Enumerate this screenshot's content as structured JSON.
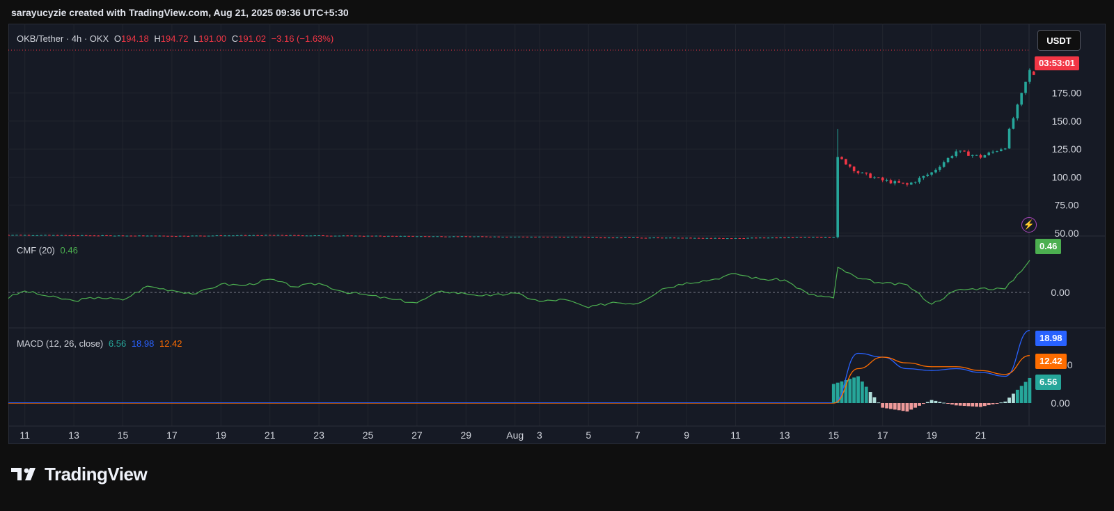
{
  "header": {
    "attribution": "sarayucyzie created with TradingView.com, Aug 21, 2025 09:36 UTC+5:30"
  },
  "symbol_legend": {
    "symbol": "OKB/Tether · 4h · OKX",
    "o_label": "O",
    "o_value": "194.18",
    "h_label": "H",
    "h_value": "194.72",
    "l_label": "L",
    "l_value": "191.00",
    "c_label": "C",
    "c_value": "191.02",
    "change": "−3.16 (−1.63%)"
  },
  "currency_button": "USDT",
  "countdown": "03:53:01",
  "cmf_legend": {
    "name": "CMF (20)",
    "value": "0.46"
  },
  "macd_legend": {
    "name": "MACD (12, 26, close)",
    "hist": "6.56",
    "macd": "18.98",
    "signal": "12.42"
  },
  "price_axis_labels": [
    "175.00",
    "150.00",
    "125.00",
    "100.00",
    "75.00",
    "50.00"
  ],
  "cmf_axis_labels": [
    "0.00"
  ],
  "macd_axis_labels": [
    "10.00",
    "0.00"
  ],
  "badges": {
    "cmf": "0.46",
    "macd": "18.98",
    "signal": "12.42",
    "hist": "6.56"
  },
  "x_axis_labels": [
    "11",
    "13",
    "15",
    "17",
    "19",
    "21",
    "23",
    "25",
    "27",
    "29",
    "Aug",
    "3",
    "5",
    "7",
    "9",
    "11",
    "13",
    "15",
    "17",
    "19",
    "21"
  ],
  "footer": {
    "brand": "TradingView"
  },
  "colors": {
    "up": "#26a69a",
    "down": "#f23645",
    "cmf": "#4caf50",
    "macd": "#2962ff",
    "signal": "#ff6d00",
    "background": "#161a25",
    "grid": "#22262f"
  },
  "chart_data": [
    {
      "type": "candlestick",
      "title": "OKB/Tether · 4h · OKX",
      "x_range": [
        "Jul 11",
        "Aug 21"
      ],
      "ylim": [
        35,
        200
      ],
      "price_anchors": [
        {
          "date": "Jul 10",
          "close": 48.5
        },
        {
          "date": "Jul 13",
          "close": 48.0
        },
        {
          "date": "Jul 17",
          "close": 47.5
        },
        {
          "date": "Jul 21",
          "close": 48.2
        },
        {
          "date": "Jul 25",
          "close": 47.5
        },
        {
          "date": "Jul 29",
          "close": 47.0
        },
        {
          "date": "Aug 2",
          "close": 46.5
        },
        {
          "date": "Aug 5",
          "close": 46.0
        },
        {
          "date": "Aug 8",
          "close": 45.5
        },
        {
          "date": "Aug 11",
          "close": 46.0
        },
        {
          "date": "Aug 13",
          "close": 46.5
        },
        {
          "date": "Aug 13",
          "close": 118
        },
        {
          "date": "Aug 14",
          "close": 104
        },
        {
          "date": "Aug 15",
          "close": 97
        },
        {
          "date": "Aug 16",
          "close": 93
        },
        {
          "date": "Aug 17",
          "close": 104
        },
        {
          "date": "Aug 18",
          "close": 123
        },
        {
          "date": "Aug 19",
          "close": 118
        },
        {
          "date": "Aug 20",
          "close": 127
        },
        {
          "date": "Aug 20",
          "close": 142
        },
        {
          "date": "Aug 21",
          "close": 195
        },
        {
          "date": "Aug 21",
          "close": 191.02
        }
      ],
      "spike_high": 143,
      "last": {
        "open": 194.18,
        "high": 194.72,
        "low": 191.0,
        "close": 191.02
      }
    },
    {
      "type": "line",
      "title": "CMF (20)",
      "ylim": [
        -0.35,
        0.55
      ],
      "points": [
        {
          "x": "Jul 10",
          "y": -0.12
        },
        {
          "x": "Jul 11",
          "y": 0.02
        },
        {
          "x": "Jul 12",
          "y": -0.06
        },
        {
          "x": "Jul 13",
          "y": -0.12
        },
        {
          "x": "Jul 14",
          "y": -0.07
        },
        {
          "x": "Jul 15",
          "y": -0.11
        },
        {
          "x": "Jul 16",
          "y": 0.09
        },
        {
          "x": "Jul 17",
          "y": 0.03
        },
        {
          "x": "Jul 18",
          "y": -0.02
        },
        {
          "x": "Jul 19",
          "y": 0.12
        },
        {
          "x": "Jul 20",
          "y": 0.1
        },
        {
          "x": "Jul 21",
          "y": 0.19
        },
        {
          "x": "Jul 22",
          "y": 0.08
        },
        {
          "x": "Jul 23",
          "y": 0.13
        },
        {
          "x": "Jul 24",
          "y": 0.01
        },
        {
          "x": "Jul 25",
          "y": -0.04
        },
        {
          "x": "Jul 26",
          "y": -0.1
        },
        {
          "x": "Jul 27",
          "y": -0.15
        },
        {
          "x": "Jul 28",
          "y": 0.02
        },
        {
          "x": "Jul 29",
          "y": -0.02
        },
        {
          "x": "Jul 30",
          "y": -0.05
        },
        {
          "x": "Jul 31",
          "y": -0.01
        },
        {
          "x": "Aug 1",
          "y": -0.13
        },
        {
          "x": "Aug 2",
          "y": -0.1
        },
        {
          "x": "Aug 3",
          "y": -0.22
        },
        {
          "x": "Aug 4",
          "y": -0.14
        },
        {
          "x": "Aug 5",
          "y": -0.16
        },
        {
          "x": "Aug 6",
          "y": 0.05
        },
        {
          "x": "Aug 7",
          "y": 0.14
        },
        {
          "x": "Aug 8",
          "y": 0.18
        },
        {
          "x": "Aug 9",
          "y": 0.27
        },
        {
          "x": "Aug 10",
          "y": 0.19
        },
        {
          "x": "Aug 11",
          "y": 0.18
        },
        {
          "x": "Aug 12",
          "y": -0.03
        },
        {
          "x": "Aug 13",
          "y": -0.08
        },
        {
          "x": "Aug 13",
          "y": 0.36
        },
        {
          "x": "Aug 14",
          "y": 0.2
        },
        {
          "x": "Aug 15",
          "y": 0.13
        },
        {
          "x": "Aug 16",
          "y": 0.11
        },
        {
          "x": "Aug 17",
          "y": -0.17
        },
        {
          "x": "Aug 18",
          "y": 0.03
        },
        {
          "x": "Aug 19",
          "y": 0.06
        },
        {
          "x": "Aug 20",
          "y": 0.05
        },
        {
          "x": "Aug 21",
          "y": 0.46
        }
      ],
      "reference_line": 0.0
    },
    {
      "type": "line+bar",
      "title": "MACD (12, 26, close)",
      "ylim": [
        -3,
        22
      ],
      "series": [
        {
          "name": "MACD",
          "points": [
            [
              "Aug 13",
              0
            ],
            [
              "Aug 14",
              13
            ],
            [
              "Aug 15",
              12
            ],
            [
              "Aug 16",
              9
            ],
            [
              "Aug 17",
              8.5
            ],
            [
              "Aug 18",
              9
            ],
            [
              "Aug 19",
              8
            ],
            [
              "Aug 20",
              7
            ],
            [
              "Aug 21",
              18.98
            ]
          ]
        },
        {
          "name": "Signal",
          "points": [
            [
              "Aug 13",
              0
            ],
            [
              "Aug 14",
              9
            ],
            [
              "Aug 15",
              12
            ],
            [
              "Aug 16",
              10.5
            ],
            [
              "Aug 17",
              9.5
            ],
            [
              "Aug 18",
              9.5
            ],
            [
              "Aug 19",
              8.5
            ],
            [
              "Aug 20",
              7.5
            ],
            [
              "Aug 21",
              12.42
            ]
          ]
        },
        {
          "name": "Histogram",
          "points": [
            [
              "Aug 13",
              5
            ],
            [
              "Aug 14",
              7
            ],
            [
              "Aug 15",
              -1.2
            ],
            [
              "Aug 16",
              -2.2
            ],
            [
              "Aug 17",
              0.8
            ],
            [
              "Aug 18",
              -0.6
            ],
            [
              "Aug 19",
              -1.0
            ],
            [
              "Aug 20",
              0.4
            ],
            [
              "Aug 21",
              6.56
            ]
          ]
        }
      ]
    }
  ]
}
